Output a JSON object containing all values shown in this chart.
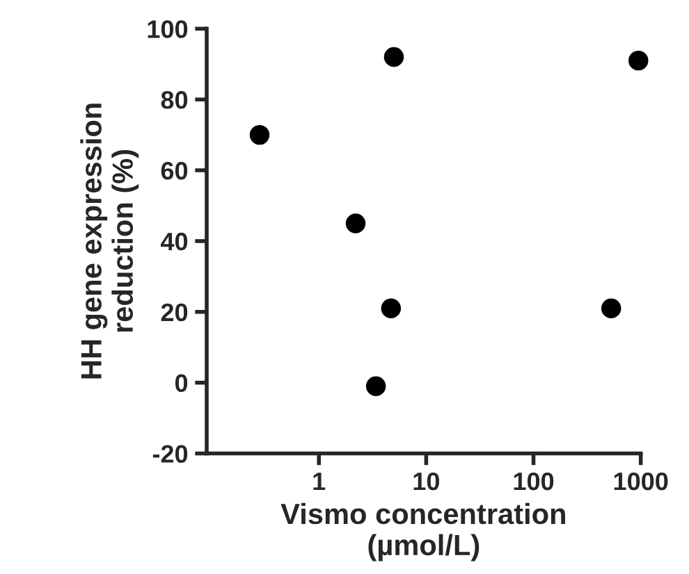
{
  "chart_data": {
    "type": "scatter",
    "xlabel": "Vismo concentration\n(µmol/L)",
    "ylabel": "HH gene expression\nreduction (%)",
    "x": [
      0.28,
      2.2,
      5.0,
      4.7,
      3.4,
      530,
      950
    ],
    "values": [
      70,
      45,
      92,
      21,
      -1,
      21,
      91
    ],
    "color": "#000000",
    "marker": "circle",
    "log": "x",
    "xlim": [
      0.09,
      1000
    ],
    "xticks": [
      1,
      10,
      100,
      1000
    ],
    "ylim": [
      -20,
      100
    ],
    "yticks": [
      -20,
      0,
      20,
      40,
      60,
      80,
      100
    ],
    "grid": false,
    "legend": false
  }
}
